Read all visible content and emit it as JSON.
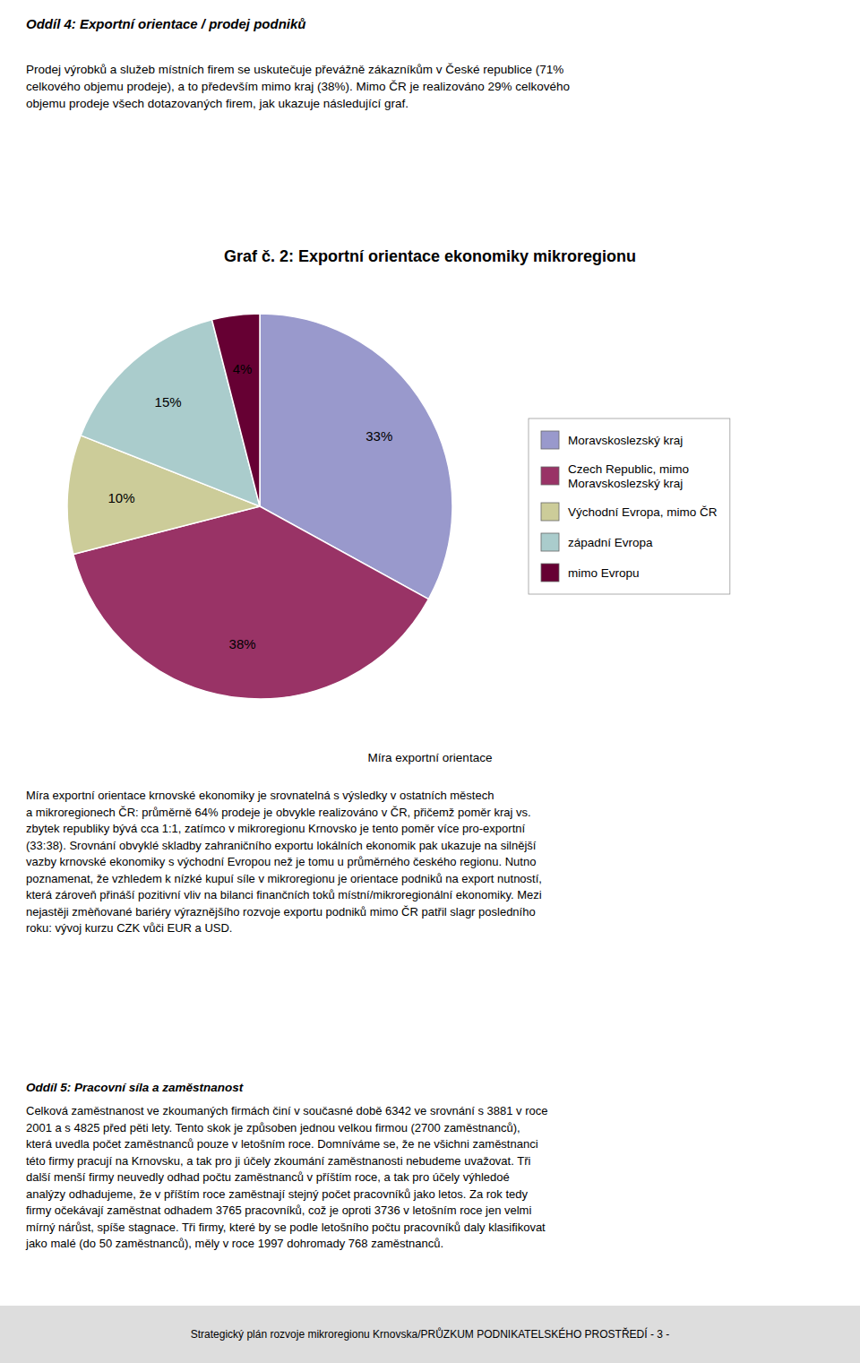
{
  "chart_data": {
    "type": "pie",
    "title": "Graf č. 2: Exportní orientace ekonomiky mikroregionu",
    "categories": [
      "Moravskoslezský kraj",
      "Czech Republic, mimo\nMoravskoslezský kraj",
      "Východní Evropa, mimo ČR",
      "západní Evropa",
      "mimo Evropu"
    ],
    "values": [
      33,
      38,
      10,
      15,
      4
    ],
    "value_labels": [
      "33%",
      "38%",
      "10%",
      "15%",
      "4%"
    ],
    "data_labels": true,
    "colors": [
      "#9999CC",
      "#993366",
      "#CCCC99",
      "#AACCCC",
      "#660033"
    ],
    "legend": "right"
  },
  "page_title": "Oddíl 4: Exportní orientace / prodej podniků",
  "body_text1": [
    "Prodej výrobků a služeb místních firem se uskutečuje převážně zákazníkům v České republice (71%",
    "celkového objemu prodeje), a to především mimo kraj (38%). Mimo ČR je realizováno 29% celkového",
    "objemu prodeje všech dotazovaných firem, jak ukazuje následující graf."
  ],
  "caption": "Míra exportní orientace",
  "body_text2": [
    "Míra exportní orientace krnovské ekonomiky je srovnatelná s výsledky v ostatních městech",
    "a mikroregionech ČR: průměrně 64% prodeje je obvykle realizováno v ČR, přičemž poměr kraj vs.",
    "zbytek republiky bývá cca 1:1, zatímco v mikroregionu Krnovsko je tento poměr více pro-exportní",
    "(33:38). Srovnání obvyklé skladby zahraničního exportu lokálních ekonomik pak ukazuje na silnější",
    "vazby krnovské ekonomiky s východní Evropou než je tomu u průměrného českého regionu. Nutno",
    "poznamenat, že vzhledem k nízké kupuí síle v mikroregionu je orientace podniků na export nutností,",
    "která zároveň přináší pozitivní vliv na bilanci finančních toků místní/mikroregionální ekonomiky. Mezi",
    "nejastěji zmèňované bariéry výraznějšího rozvoje exportu podniků mimo ČR patřil slagr posledního",
    "roku: vývoj kurzu CZK vůči EUR a USD."
  ],
  "section5_title": "Oddíl 5: Pracovní síla a zaměstnanost",
  "section5_body": [
    "Celková zaměstnanost ve zkoumaných firmách činí v současné době 6342 ve srovnání s 3881 v roce",
    "2001 a s 4825 před pěti lety. Tento skok je způsoben jednou velkou firmou (2700 zaměstnanců),",
    "která uvedla počet zaměstnanců pouze v letošním roce. Domníváme se, že ne všichni zaměstnanci",
    "této firmy pracují na Krnovsku, a tak pro ji účely zkoumání zaměstnanosti nebudeme uvažovat. Tři",
    "další menší firmy neuvedly odhad počtu zaměstnanců v příštím roce, a tak pro účely výhledoé",
    "analýzy odhadujeme, že v příštím roce zaměstnají stejný počet pracovníků jako letos. Za rok tedy",
    "firmy očekávají zaměstnat odhadem 3765 pracovníků, což je oproti 3736 v letošním roce jen velmi",
    "mírný nárůst, spíše stagnace. Tři firmy, které by se podle letošního počtu pracovníků daly klasifikovat",
    "jako malé (do 50 zaměstnanců), měly v roce 1997 dohromady 768 zaměstnanců."
  ],
  "footer_text": "Strategický plán rozvoje mikroregionu Krnovska/PRŮZKUM PODNIKATELSKÉHO PROSTŘEDÍ   - 3 -"
}
